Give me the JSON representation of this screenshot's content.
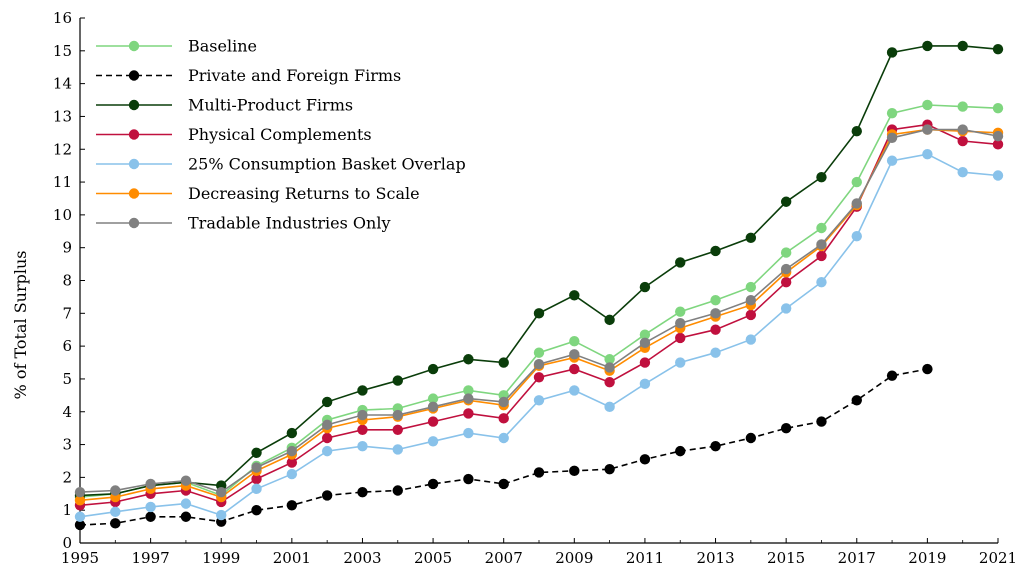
{
  "chart_data": {
    "type": "line",
    "xlabel": "",
    "ylabel": "% of Total Surplus",
    "xlim": [
      1995,
      2021
    ],
    "ylim": [
      0,
      16
    ],
    "x_ticks": [
      1995,
      1997,
      1999,
      2001,
      2003,
      2005,
      2007,
      2009,
      2011,
      2013,
      2015,
      2017,
      2019,
      2021
    ],
    "y_ticks": [
      0,
      1,
      2,
      3,
      4,
      5,
      6,
      7,
      8,
      9,
      10,
      11,
      12,
      13,
      14,
      15,
      16
    ],
    "legend_position": "top-left",
    "grid": false,
    "x": [
      1995,
      1996,
      1997,
      1998,
      1999,
      2000,
      2001,
      2002,
      2003,
      2004,
      2005,
      2006,
      2007,
      2008,
      2009,
      2010,
      2011,
      2012,
      2013,
      2014,
      2015,
      2016,
      2017,
      2018,
      2019,
      2020,
      2021
    ],
    "series": [
      {
        "name": "Baseline",
        "color": "#7fd67f",
        "dashed": false,
        "values": [
          1.4,
          1.5,
          1.75,
          1.85,
          1.45,
          2.35,
          2.9,
          3.75,
          4.05,
          4.1,
          4.4,
          4.65,
          4.5,
          5.8,
          6.15,
          5.6,
          6.35,
          7.05,
          7.4,
          7.8,
          8.85,
          9.6,
          11.0,
          13.1,
          13.35,
          13.3,
          13.25
        ]
      },
      {
        "name": "Private and Foreign Firms",
        "color": "#000000",
        "dashed": true,
        "values": [
          0.55,
          0.6,
          0.8,
          0.8,
          0.65,
          1.0,
          1.15,
          1.45,
          1.55,
          1.6,
          1.8,
          1.95,
          1.8,
          2.15,
          2.2,
          2.25,
          2.55,
          2.8,
          2.95,
          3.2,
          3.5,
          3.7,
          4.35,
          5.1,
          5.3,
          null,
          null
        ]
      },
      {
        "name": "Multi-Product Firms",
        "color": "#0a3d0a",
        "dashed": false,
        "values": [
          1.45,
          1.5,
          1.75,
          1.85,
          1.75,
          2.75,
          3.35,
          4.3,
          4.65,
          4.95,
          5.3,
          5.6,
          5.5,
          7.0,
          7.55,
          6.8,
          7.8,
          8.55,
          8.9,
          9.3,
          10.4,
          11.15,
          12.55,
          14.95,
          15.15,
          15.15,
          15.05
        ]
      },
      {
        "name": "Physical Complements",
        "color": "#c0103e",
        "dashed": false,
        "values": [
          1.15,
          1.25,
          1.5,
          1.6,
          1.25,
          1.95,
          2.45,
          3.2,
          3.45,
          3.45,
          3.7,
          3.95,
          3.8,
          5.05,
          5.3,
          4.9,
          5.5,
          6.25,
          6.5,
          6.95,
          7.95,
          8.75,
          10.25,
          12.6,
          12.75,
          12.25,
          12.15
        ]
      },
      {
        "name": "25% Consumption Basket Overlap",
        "color": "#89c2ea",
        "dashed": false,
        "values": [
          0.8,
          0.95,
          1.1,
          1.2,
          0.85,
          1.65,
          2.1,
          2.8,
          2.95,
          2.85,
          3.1,
          3.35,
          3.2,
          4.35,
          4.65,
          4.15,
          4.85,
          5.5,
          5.8,
          6.2,
          7.15,
          7.95,
          9.35,
          11.65,
          11.85,
          11.3,
          11.2
        ]
      },
      {
        "name": "Decreasing Returns to Scale",
        "color": "#ff8c00",
        "dashed": false,
        "values": [
          1.3,
          1.4,
          1.65,
          1.75,
          1.4,
          2.2,
          2.7,
          3.5,
          3.75,
          3.85,
          4.1,
          4.35,
          4.2,
          5.4,
          5.65,
          5.25,
          5.95,
          6.55,
          6.9,
          7.25,
          8.25,
          9.05,
          10.3,
          12.45,
          12.6,
          12.55,
          12.5
        ]
      },
      {
        "name": "Tradable Industries Only",
        "color": "#808080",
        "dashed": false,
        "values": [
          1.55,
          1.6,
          1.8,
          1.9,
          1.55,
          2.3,
          2.8,
          3.6,
          3.9,
          3.9,
          4.15,
          4.4,
          4.3,
          5.45,
          5.75,
          5.35,
          6.1,
          6.7,
          7.0,
          7.4,
          8.35,
          9.1,
          10.35,
          12.35,
          12.6,
          12.6,
          12.4
        ]
      }
    ]
  }
}
